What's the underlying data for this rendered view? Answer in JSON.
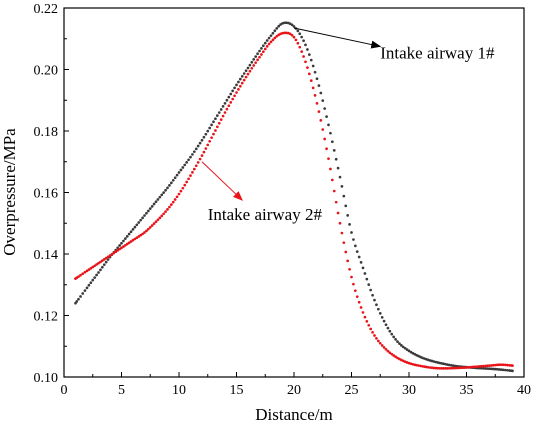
{
  "chart_data": {
    "type": "scatter",
    "xlabel": "Distance/m",
    "ylabel": "Overpressure/MPa",
    "xlim": [
      0,
      40
    ],
    "ylim": [
      0.1,
      0.22
    ],
    "x_ticks": [
      0,
      5,
      10,
      15,
      20,
      25,
      30,
      35,
      40
    ],
    "y_ticks": [
      0.1,
      0.12,
      0.14,
      0.16,
      0.18,
      0.2,
      0.22
    ],
    "x_tick_labels": [
      "0",
      "5",
      "10",
      "15",
      "20",
      "25",
      "30",
      "35",
      "40"
    ],
    "y_tick_labels": [
      "0.10",
      "0.12",
      "0.14",
      "0.16",
      "0.18",
      "0.20",
      "0.22"
    ],
    "grid": false,
    "series": [
      {
        "name": "Intake airway 1#",
        "color": "#3a3a3a",
        "points": [
          [
            1,
            0.124
          ],
          [
            2,
            0.129
          ],
          [
            3,
            0.134
          ],
          [
            4,
            0.139
          ],
          [
            5,
            0.1435
          ],
          [
            6,
            0.148
          ],
          [
            7,
            0.1525
          ],
          [
            8,
            0.157
          ],
          [
            9,
            0.1615
          ],
          [
            10,
            0.1665
          ],
          [
            11,
            0.1715
          ],
          [
            12,
            0.177
          ],
          [
            13,
            0.183
          ],
          [
            14,
            0.189
          ],
          [
            15,
            0.195
          ],
          [
            16,
            0.2005
          ],
          [
            17,
            0.206
          ],
          [
            18,
            0.211
          ],
          [
            19,
            0.215
          ],
          [
            20,
            0.214
          ],
          [
            21,
            0.208
          ],
          [
            22,
            0.197
          ],
          [
            23,
            0.182
          ],
          [
            24,
            0.165
          ],
          [
            25,
            0.147
          ],
          [
            26,
            0.1355
          ],
          [
            27,
            0.125
          ],
          [
            28,
            0.117
          ],
          [
            29,
            0.1115
          ],
          [
            30,
            0.1085
          ],
          [
            31,
            0.1065
          ],
          [
            32,
            0.1052
          ],
          [
            33,
            0.1043
          ],
          [
            34,
            0.1036
          ],
          [
            35,
            0.1032
          ],
          [
            36,
            0.1029
          ],
          [
            37,
            0.1027
          ],
          [
            38,
            0.1024
          ],
          [
            39,
            0.102
          ]
        ]
      },
      {
        "name": "Intake airway 2#",
        "color": "#e8141a",
        "points": [
          [
            1,
            0.132
          ],
          [
            2,
            0.1345
          ],
          [
            3,
            0.137
          ],
          [
            4,
            0.1395
          ],
          [
            5,
            0.142
          ],
          [
            6,
            0.1445
          ],
          [
            7,
            0.147
          ],
          [
            8,
            0.1505
          ],
          [
            9,
            0.1545
          ],
          [
            10,
            0.1595
          ],
          [
            11,
            0.1655
          ],
          [
            12,
            0.172
          ],
          [
            13,
            0.179
          ],
          [
            14,
            0.186
          ],
          [
            15,
            0.1925
          ],
          [
            16,
            0.1985
          ],
          [
            17,
            0.204
          ],
          [
            18,
            0.209
          ],
          [
            19,
            0.2118
          ],
          [
            20,
            0.2105
          ],
          [
            21,
            0.2025
          ],
          [
            22,
            0.189
          ],
          [
            23,
            0.171
          ],
          [
            24,
            0.15
          ],
          [
            25,
            0.1325
          ],
          [
            26,
            0.121
          ],
          [
            27,
            0.1135
          ],
          [
            28,
            0.109
          ],
          [
            29,
            0.1062
          ],
          [
            30,
            0.1045
          ],
          [
            31,
            0.1036
          ],
          [
            32,
            0.103
          ],
          [
            33,
            0.1028
          ],
          [
            34,
            0.1029
          ],
          [
            35,
            0.1031
          ],
          [
            36,
            0.1034
          ],
          [
            37,
            0.1037
          ],
          [
            38,
            0.104
          ],
          [
            39,
            0.1037
          ]
        ]
      }
    ],
    "annotations": [
      {
        "text": "Intake airway 1#",
        "arrow_from": [
          20,
          0.2135
        ],
        "arrow_to": [
          27.5,
          0.2075
        ],
        "arrow_color": "#000000",
        "text_at": [
          27.5,
          0.2035
        ]
      },
      {
        "text": "Intake airway 2#",
        "arrow_from": [
          12,
          0.17
        ],
        "arrow_to": [
          15.5,
          0.1575
        ],
        "arrow_color": "#e8141a",
        "text_at": [
          12.5,
          0.151
        ]
      }
    ]
  }
}
